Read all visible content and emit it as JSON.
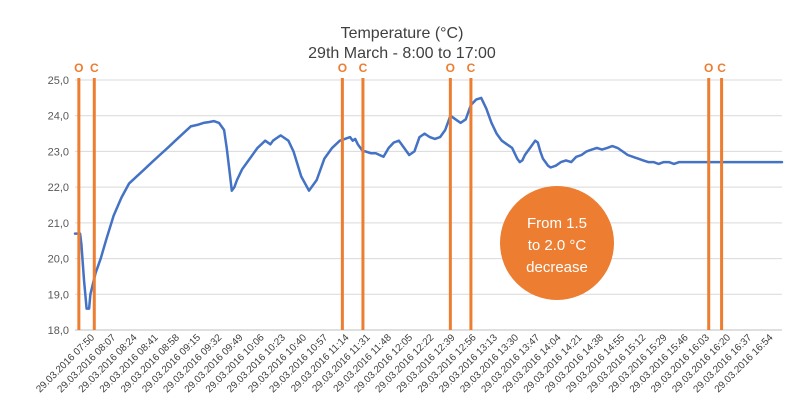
{
  "chart_data": {
    "type": "line",
    "title": "Temperature (°C)",
    "subtitle": "29th March - 8:00 to 17:00",
    "xlabel": "",
    "ylabel": "",
    "ylim": [
      18.0,
      25.0
    ],
    "yticks": [
      18.0,
      19.0,
      20.0,
      21.0,
      22.0,
      23.0,
      24.0,
      25.0
    ],
    "ytick_labels": [
      "18,0",
      "19,0",
      "20,0",
      "21,0",
      "22,0",
      "23,0",
      "24,0",
      "25,0"
    ],
    "x_range": [
      "29.03.2016 07:50",
      "29.03.2016 17:00"
    ],
    "xtick_labels": [
      "29.03.2016 07:50",
      "29.03.2016 08:07",
      "29.03.2016 08:24",
      "29.03.2016 08:41",
      "29.03.2016 08:58",
      "29.03.2016 09:15",
      "29.03.2016 09:32",
      "29.03.2016 09:49",
      "29.03.2016 10:06",
      "29.03.2016 10:23",
      "29.03.2016 10:40",
      "29.03.2016 10:57",
      "29.03.2016 11:14",
      "29.03.2016 11:31",
      "29.03.2016 11:48",
      "29.03.2016 12:05",
      "29.03.2016 12:22",
      "29.03.2016 12:39",
      "29.03.2016 12:56",
      "29.03.2016 13:13",
      "29.03.2016 13:30",
      "29.03.2016 13:47",
      "29.03.2016 14:04",
      "29.03.2016 14:21",
      "29.03.2016 14:38",
      "29.03.2016 14:55",
      "29.03.2016 15:12",
      "29.03.2016 15:29",
      "29.03.2016 15:46",
      "29.03.2016 16:03",
      "29.03.2016 16:20",
      "29.03.2016 16:37",
      "29.03.2016 16:54"
    ],
    "series": [
      {
        "name": "Temperature",
        "color": "#4472C4",
        "x_minutes": [
          0,
          4,
          5,
          6,
          7,
          8,
          9,
          11,
          12,
          14,
          16,
          20,
          24,
          30,
          36,
          42,
          48,
          54,
          60,
          66,
          72,
          78,
          84,
          90,
          96,
          100,
          104,
          108,
          112,
          116,
          118,
          120,
          122,
          124,
          126,
          130,
          136,
          142,
          148,
          152,
          154,
          156,
          158,
          160,
          162,
          166,
          170,
          176,
          182,
          188,
          194,
          200,
          206,
          210,
          214,
          216,
          218,
          220,
          222,
          224,
          226,
          230,
          234,
          240,
          244,
          248,
          252,
          256,
          260,
          264,
          268,
          272,
          276,
          280,
          284,
          288,
          292,
          296,
          300,
          304,
          306,
          308,
          312,
          316,
          320,
          324,
          328,
          332,
          336,
          340,
          344,
          346,
          348,
          350,
          352,
          354,
          356,
          358,
          360,
          362,
          364,
          366,
          368,
          370,
          374,
          378,
          382,
          386,
          390,
          394,
          398,
          402,
          406,
          410,
          414,
          418,
          422,
          426,
          430,
          434,
          438,
          442,
          446,
          450,
          454,
          458,
          462,
          466,
          470,
          474,
          478,
          482,
          486,
          490,
          494,
          498,
          502,
          506,
          510,
          514,
          518,
          522,
          526,
          530,
          534,
          538,
          542,
          546,
          550
        ],
        "values": [
          20.7,
          20.7,
          20.4,
          19.9,
          19.4,
          19.0,
          18.6,
          18.6,
          19.0,
          19.3,
          19.6,
          20.0,
          20.5,
          21.2,
          21.7,
          22.1,
          22.3,
          22.5,
          22.7,
          22.9,
          23.1,
          23.3,
          23.5,
          23.7,
          23.75,
          23.8,
          23.82,
          23.85,
          23.8,
          23.6,
          23.1,
          22.5,
          21.9,
          22.0,
          22.2,
          22.5,
          22.8,
          23.1,
          23.3,
          23.2,
          23.3,
          23.35,
          23.4,
          23.45,
          23.4,
          23.3,
          23.0,
          22.3,
          21.9,
          22.2,
          22.8,
          23.1,
          23.3,
          23.35,
          23.4,
          23.3,
          23.35,
          23.2,
          23.1,
          23.0,
          23.0,
          22.95,
          22.95,
          22.85,
          23.1,
          23.25,
          23.3,
          23.1,
          22.9,
          23.0,
          23.4,
          23.5,
          23.4,
          23.35,
          23.4,
          23.6,
          24.0,
          23.9,
          23.8,
          23.9,
          24.1,
          24.3,
          24.45,
          24.5,
          24.2,
          23.8,
          23.5,
          23.3,
          23.2,
          23.1,
          22.8,
          22.7,
          22.75,
          22.9,
          23.0,
          23.1,
          23.2,
          23.3,
          23.25,
          23.0,
          22.8,
          22.7,
          22.6,
          22.55,
          22.6,
          22.7,
          22.75,
          22.7,
          22.85,
          22.9,
          23.0,
          23.05,
          23.1,
          23.05,
          23.1,
          23.15,
          23.1,
          23.0,
          22.9,
          22.85,
          22.8,
          22.75,
          22.7,
          22.7,
          22.65,
          22.7,
          22.7,
          22.65,
          22.7,
          22.7,
          22.7,
          22.7,
          22.7,
          22.7,
          22.7,
          22.7,
          22.7,
          22.7,
          22.7,
          22.7,
          22.7,
          22.7,
          22.7,
          22.7,
          22.7,
          22.7,
          22.7,
          22.7,
          22.7
        ]
      }
    ],
    "markers": {
      "color": "#ED7D31",
      "labels": [
        "O",
        "C",
        "O",
        "C",
        "O",
        "C",
        "O",
        "C"
      ],
      "x_minutes": [
        3,
        15,
        208,
        224,
        292,
        308,
        493,
        503
      ]
    },
    "annotation": {
      "lines": [
        "From 1.5",
        "to 2.0 °C",
        "decrease"
      ],
      "fill": "#ED7D31",
      "text_color": "#FFFFFF"
    },
    "grid": true,
    "legend": "none"
  }
}
